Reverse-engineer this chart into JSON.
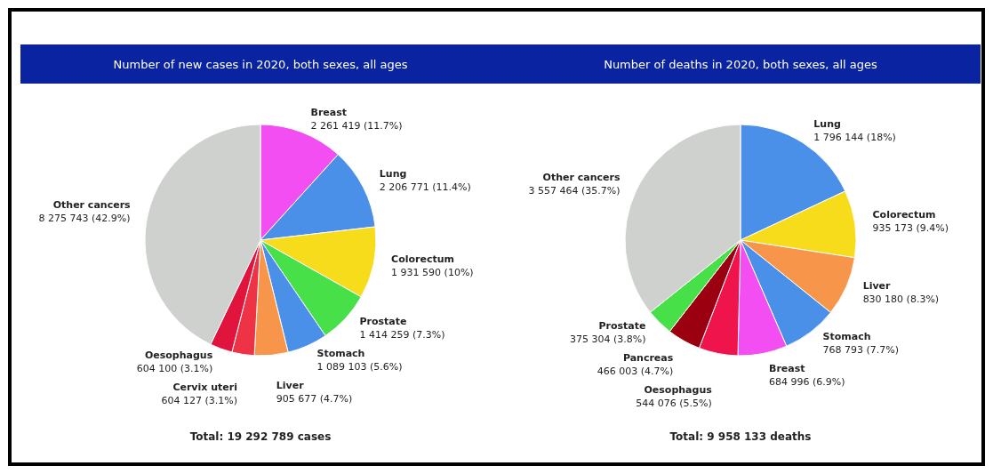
{
  "chart_data": [
    {
      "type": "pie",
      "title": "Number of new cases in 2020, both sexes, all ages",
      "categories": [
        "Breast",
        "Lung",
        "Colorectum",
        "Prostate",
        "Stomach",
        "Liver",
        "Cervix uteri",
        "Oesophagus",
        "Other cancers"
      ],
      "values": [
        2261419,
        2206771,
        1931590,
        1414259,
        1089103,
        905677,
        604127,
        604100,
        8275743
      ],
      "colors": [
        "#f24ef2",
        "#4a8fe8",
        "#f7dc1c",
        "#48e048",
        "#4a8fe8",
        "#f7964a",
        "#ee3346",
        "#e0143c",
        "#cfd1cf"
      ],
      "value_labels": [
        "2 261 419 (11.7%)",
        "2 206 771 (11.4%)",
        "1 931 590 (10%)",
        "1 414 259 (7.3%)",
        "1 089 103 (5.6%)",
        "905 677 (4.7%)",
        "604 127 (3.1%)",
        "604 100 (3.1%)",
        "8 275 743 (42.9%)"
      ],
      "annotations": [
        "Total: 19 292 789 cases"
      ]
    },
    {
      "type": "pie",
      "title": "Number of deaths in 2020, both sexes, all ages",
      "categories": [
        "Lung",
        "Colorectum",
        "Liver",
        "Stomach",
        "Breast",
        "Oesophagus",
        "Pancreas",
        "Prostate",
        "Other cancers"
      ],
      "values": [
        1796144,
        935173,
        830180,
        768793,
        684996,
        544076,
        466003,
        375304,
        3557464
      ],
      "colors": [
        "#4a8fe8",
        "#f7dc1c",
        "#f7964a",
        "#4a8fe8",
        "#f24ef2",
        "#f0144c",
        "#9a0010",
        "#48e048",
        "#cfd1cf"
      ],
      "value_labels": [
        "1 796 144 (18%)",
        "935 173 (9.4%)",
        "830 180 (8.3%)",
        "768 793 (7.7%)",
        "684 996 (6.9%)",
        "544 076 (5.5%)",
        "466 003 (4.7%)",
        "375 304 (3.8%)",
        "3 557 464 (35.7%)"
      ],
      "annotations": [
        "Total: 9 958 133 deaths"
      ]
    }
  ]
}
